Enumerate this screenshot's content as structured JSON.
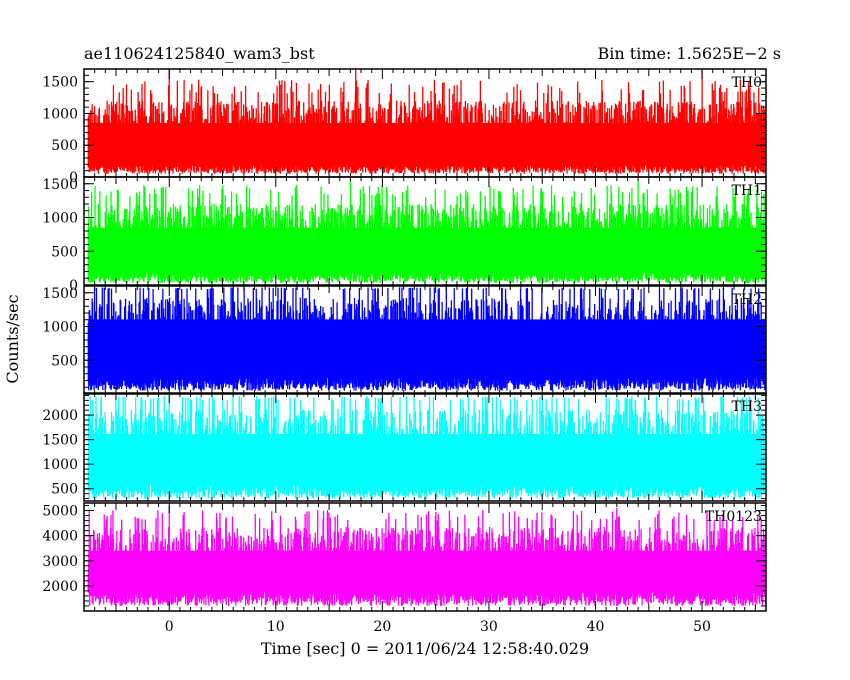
{
  "chart_data": {
    "type": "line",
    "title_left": "ae110624125840_wam3_bst",
    "title_right": "Bin time: 1.5625E−2 s",
    "xlabel": "Time [sec] 0 = 2011/06/24 12:58:40.029",
    "ylabel": "Counts/sec",
    "xlim": [
      -8,
      56
    ],
    "x_range_data": [
      -8,
      56
    ],
    "xticks_major": [
      0,
      10,
      20,
      30,
      40,
      50
    ],
    "xticks_minor": [
      -5,
      5,
      15,
      25,
      35,
      45,
      55
    ],
    "grid": false,
    "panels": [
      {
        "name": "TH0",
        "color": "#ff0000",
        "ylim": [
          0,
          1700
        ],
        "yticks_major": [
          0,
          500,
          1000,
          1500
        ],
        "ytick_labels": [
          "0",
          "500",
          "1000",
          "1500"
        ],
        "baseline_range": [
          50,
          200
        ],
        "envelope_mean": 700,
        "typical_peak_range": [
          1000,
          1300
        ],
        "max_spikes": [
          {
            "x": 0,
            "y": 1700
          },
          {
            "x": 17.5,
            "y": 1700
          },
          {
            "x": 50,
            "y": 1700
          }
        ]
      },
      {
        "name": "TH1",
        "color": "#00ff00",
        "ylim": [
          0,
          1600
        ],
        "yticks_major": [
          0,
          500,
          1000,
          1500
        ],
        "ytick_labels": [
          "0",
          "500",
          "1000",
          "1500"
        ],
        "baseline_range": [
          30,
          200
        ],
        "envelope_mean": 700,
        "typical_peak_range": [
          1000,
          1300
        ],
        "max_spikes": [
          {
            "x": 17,
            "y": 1600
          },
          {
            "x": 44,
            "y": 1550
          }
        ]
      },
      {
        "name": "TH2",
        "color": "#0000ff",
        "ylim": [
          0,
          1600
        ],
        "yticks_major": [
          500,
          1000,
          1500
        ],
        "ytick_labels": [
          "500",
          "1000",
          "1500"
        ],
        "baseline_range": [
          50,
          250
        ],
        "envelope_mean": 800,
        "typical_peak_range": [
          1300,
          1550
        ],
        "max_spikes": [
          {
            "x": 6,
            "y": 1600
          },
          {
            "x": 26,
            "y": 1600
          }
        ]
      },
      {
        "name": "TH3",
        "color": "#00ffff",
        "ylim": [
          250,
          2450
        ],
        "yticks_major": [
          500,
          1000,
          1500,
          2000
        ],
        "ytick_labels": [
          "500",
          "1000",
          "1500",
          "2000"
        ],
        "baseline_range": [
          300,
          600
        ],
        "envelope_mean": 1200,
        "typical_peak_range": [
          1900,
          2300
        ],
        "max_spikes": [
          {
            "x": 0,
            "y": 2400
          },
          {
            "x": 41,
            "y": 2400
          }
        ]
      },
      {
        "name": "TH0123",
        "color": "#ff00ff",
        "ylim": [
          1000,
          5300
        ],
        "yticks_major": [
          2000,
          3000,
          4000,
          5000
        ],
        "ytick_labels": [
          "2000",
          "3000",
          "4000",
          "5000"
        ],
        "baseline_range": [
          1200,
          1800
        ],
        "envelope_mean": 3000,
        "typical_peak_range": [
          4000,
          4600
        ],
        "max_spikes": [
          {
            "x": 0,
            "y": 5200
          },
          {
            "x": 42,
            "y": 5100
          }
        ]
      }
    ]
  }
}
